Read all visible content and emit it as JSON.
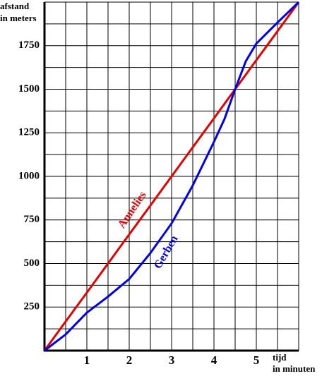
{
  "chart_data": {
    "type": "line",
    "y_label": [
      "afstand",
      "in meters"
    ],
    "x_label": [
      "tijd",
      "in minuten"
    ],
    "x": [
      0,
      0.5,
      1,
      1.5,
      2,
      2.5,
      3,
      3.5,
      4,
      4.25,
      4.5,
      4.75,
      5,
      5.5,
      6
    ],
    "series": [
      {
        "name": "Annelies",
        "color": "#e00000",
        "values": [
          0,
          167,
          333,
          500,
          667,
          833,
          1000,
          1167,
          1333,
          1417,
          1500,
          1583,
          1667,
          1833,
          2000
        ]
      },
      {
        "name": "Gerben",
        "color": "#0000dd",
        "values": [
          0,
          93,
          218,
          310,
          411,
          560,
          730,
          948,
          1198,
          1330,
          1500,
          1660,
          1762,
          1883,
          2000
        ]
      }
    ],
    "xlim": [
      0,
      6
    ],
    "ylim": [
      0,
      2000
    ],
    "xticks": [
      1,
      2,
      3,
      4,
      5
    ],
    "yticks": [
      250,
      500,
      750,
      1000,
      1250,
      1500,
      1750
    ],
    "xgrid": [
      0.5,
      1,
      1.5,
      2,
      2.5,
      3,
      3.5,
      4,
      4.5,
      5,
      5.5,
      6
    ],
    "ygrid": [
      125,
      250,
      375,
      500,
      625,
      750,
      875,
      1000,
      1125,
      1250,
      1375,
      1500,
      1625,
      1750,
      1875,
      2000
    ]
  }
}
